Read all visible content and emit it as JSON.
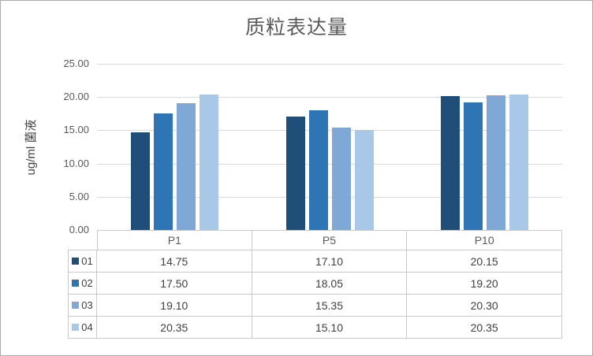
{
  "chart_data": {
    "type": "bar",
    "title": "质粒表达量",
    "xlabel": "",
    "ylabel": "ug/ml 菌液",
    "categories": [
      "P1",
      "P5",
      "P10"
    ],
    "series": [
      {
        "name": "01",
        "color": "#1f4e79",
        "values": [
          14.75,
          17.1,
          20.15
        ]
      },
      {
        "name": "02",
        "color": "#2e75b6",
        "values": [
          17.5,
          18.05,
          19.2
        ]
      },
      {
        "name": "03",
        "color": "#7fa8d6",
        "values": [
          19.1,
          15.35,
          20.3
        ]
      },
      {
        "name": "04",
        "color": "#a9c7e7",
        "values": [
          20.35,
          15.1,
          20.35
        ]
      }
    ],
    "ylim": [
      0,
      25
    ],
    "ytick_step": 5,
    "ytick_labels": [
      "0.00",
      "5.00",
      "10.00",
      "15.00",
      "20.00",
      "25.00"
    ],
    "grid": true,
    "legend_position": "table-left",
    "table_values": [
      [
        "14.75",
        "17.10",
        "20.15"
      ],
      [
        "17.50",
        "18.05",
        "19.20"
      ],
      [
        "19.10",
        "15.35",
        "20.30"
      ],
      [
        "20.35",
        "15.10",
        "20.35"
      ]
    ]
  }
}
